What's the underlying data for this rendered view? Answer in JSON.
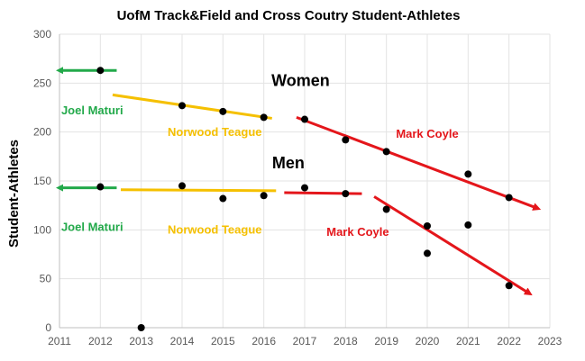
{
  "chart_data": {
    "type": "scatter",
    "title": "UofM Track&Field and Cross Coutry Student-Athletes",
    "xlabel": "",
    "ylabel": "Student-Athletes",
    "xlim": [
      2011,
      2023
    ],
    "ylim": [
      0,
      300
    ],
    "xticks": [
      "2011",
      "2012",
      "2013",
      "2014",
      "2015",
      "2016",
      "2017",
      "2018",
      "2019",
      "2020",
      "2021",
      "2022",
      "2023"
    ],
    "yticks": [
      "0",
      "50",
      "100",
      "150",
      "200",
      "250",
      "300"
    ],
    "grid": true,
    "points": [
      {
        "x": 2012,
        "y": 263
      },
      {
        "x": 2012,
        "y": 144
      },
      {
        "x": 2013,
        "y": 0
      },
      {
        "x": 2014,
        "y": 227
      },
      {
        "x": 2014,
        "y": 145
      },
      {
        "x": 2015,
        "y": 221
      },
      {
        "x": 2015,
        "y": 132
      },
      {
        "x": 2016,
        "y": 215
      },
      {
        "x": 2016,
        "y": 135
      },
      {
        "x": 2017,
        "y": 213
      },
      {
        "x": 2017,
        "y": 143
      },
      {
        "x": 2018,
        "y": 192
      },
      {
        "x": 2018,
        "y": 137
      },
      {
        "x": 2019,
        "y": 180
      },
      {
        "x": 2019,
        "y": 121
      },
      {
        "x": 2020,
        "y": 104
      },
      {
        "x": 2020,
        "y": 76
      },
      {
        "x": 2021,
        "y": 157
      },
      {
        "x": 2021,
        "y": 105
      },
      {
        "x": 2022,
        "y": 133
      },
      {
        "x": 2022,
        "y": 43
      }
    ],
    "trend_lines": [
      {
        "color": "#22a94a",
        "x": [
          2012.4,
          2011.0
        ],
        "y": [
          263,
          263
        ],
        "arrow": true
      },
      {
        "color": "#22a94a",
        "x": [
          2012.4,
          2011.0
        ],
        "y": [
          143,
          143
        ],
        "arrow": true
      },
      {
        "color": "#f5c000",
        "x": [
          2012.3,
          2016.2
        ],
        "y": [
          238,
          214
        ],
        "arrow": false
      },
      {
        "color": "#f5c000",
        "x": [
          2012.5,
          2016.3
        ],
        "y": [
          141,
          140
        ],
        "arrow": false
      },
      {
        "color": "#e4161b",
        "x": [
          2016.8,
          2022.7
        ],
        "y": [
          215,
          122
        ],
        "arrow": true
      },
      {
        "color": "#e4161b",
        "x": [
          2016.5,
          2018.4
        ],
        "y": [
          138,
          137
        ],
        "arrow": false
      },
      {
        "color": "#e4161b",
        "x": [
          2018.7,
          2022.5
        ],
        "y": [
          134,
          35
        ],
        "arrow": true
      }
    ],
    "annotations": [
      {
        "text": "Women",
        "x": 2016.9,
        "y": 247,
        "color": "#000000",
        "size": "big"
      },
      {
        "text": "Men",
        "x": 2016.6,
        "y": 163,
        "color": "#000000",
        "size": "big"
      },
      {
        "text": "Joel Maturi",
        "x": 2011.8,
        "y": 218,
        "color": "#22a94a",
        "size": "small"
      },
      {
        "text": "Joel Maturi",
        "x": 2011.8,
        "y": 99,
        "color": "#22a94a",
        "size": "small"
      },
      {
        "text": "Norwood Teague",
        "x": 2014.8,
        "y": 196,
        "color": "#f5c000",
        "size": "small"
      },
      {
        "text": "Norwood Teague",
        "x": 2014.8,
        "y": 96,
        "color": "#f5c000",
        "size": "small"
      },
      {
        "text": "Mark Coyle",
        "x": 2020.0,
        "y": 194,
        "color": "#e4161b",
        "size": "small"
      },
      {
        "text": "Mark Coyle",
        "x": 2018.3,
        "y": 94,
        "color": "#e4161b",
        "size": "small"
      }
    ]
  }
}
